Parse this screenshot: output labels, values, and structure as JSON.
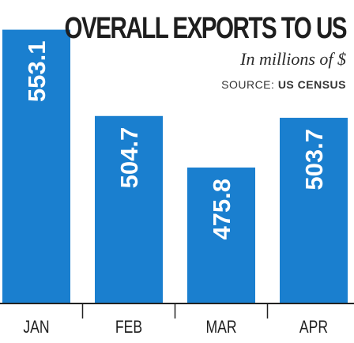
{
  "chart_data": {
    "type": "bar",
    "title": "OVERALL EXPORTS TO US",
    "subtitle": "In millions of $",
    "source_label": "SOURCE:",
    "source_value": "US CENSUS",
    "categories": [
      "JAN",
      "FEB",
      "MAR",
      "APR"
    ],
    "values": [
      553.1,
      504.7,
      475.8,
      503.7
    ],
    "value_labels": [
      "553.1",
      "504.7",
      "475.8",
      "503.7"
    ],
    "ylim": [
      400,
      560
    ],
    "grid": false,
    "legend": "none",
    "bar_color": "#1a7fcf",
    "label_color": "#ffffff",
    "axis_color": "#222222"
  }
}
